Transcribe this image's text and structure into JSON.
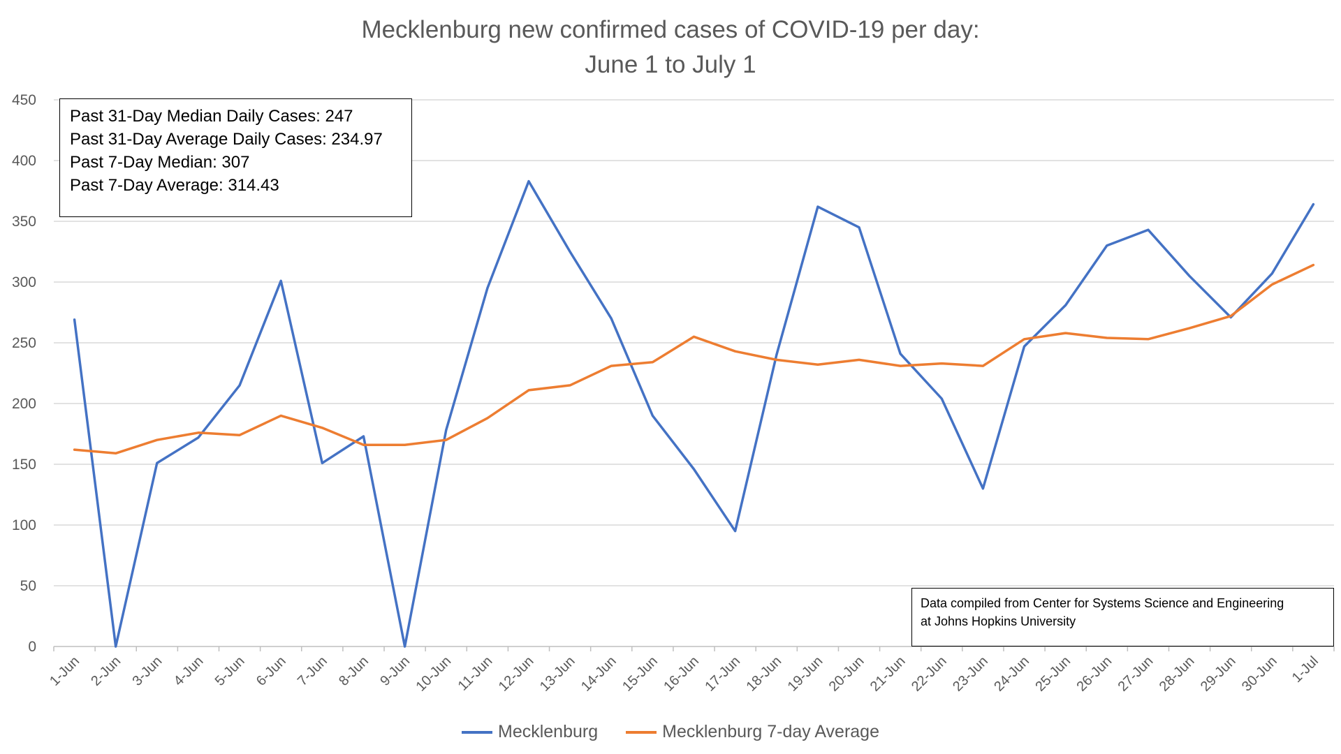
{
  "chart_data": {
    "type": "line",
    "title": "Mecklenburg new confirmed cases of COVID-19 per day:",
    "subtitle": "June 1 to July 1",
    "xlabel": "",
    "ylabel": "",
    "ylim": [
      0,
      450
    ],
    "yticks": [
      0,
      50,
      100,
      150,
      200,
      250,
      300,
      350,
      400,
      450
    ],
    "grid": true,
    "legend_position": "bottom",
    "categories": [
      "1-Jun",
      "2-Jun",
      "3-Jun",
      "4-Jun",
      "5-Jun",
      "6-Jun",
      "7-Jun",
      "8-Jun",
      "9-Jun",
      "10-Jun",
      "11-Jun",
      "12-Jun",
      "13-Jun",
      "14-Jun",
      "15-Jun",
      "16-Jun",
      "17-Jun",
      "18-Jun",
      "19-Jun",
      "20-Jun",
      "21-Jun",
      "22-Jun",
      "23-Jun",
      "24-Jun",
      "25-Jun",
      "26-Jun",
      "27-Jun",
      "28-Jun",
      "29-Jun",
      "30-Jun",
      "1-Jul"
    ],
    "series": [
      {
        "name": "Mecklenburg",
        "color": "#4472C4",
        "values": [
          269,
          0,
          151,
          172,
          215,
          301,
          151,
          173,
          0,
          178,
          295,
          383,
          325,
          270,
          190,
          146,
          95,
          240,
          362,
          345,
          241,
          204,
          130,
          247,
          281,
          330,
          343,
          305,
          271,
          307,
          364
        ]
      },
      {
        "name": "Mecklenburg 7-day Average",
        "color": "#ED7D31",
        "values": [
          162,
          159,
          170,
          176,
          174,
          190,
          180,
          166,
          166,
          170,
          188,
          211,
          215,
          231,
          234,
          255,
          243,
          236,
          232,
          236,
          231,
          233,
          231,
          253,
          258,
          254,
          253,
          262,
          272,
          298,
          314
        ]
      }
    ],
    "annotations": {
      "stats": [
        "Past 31-Day Median Daily Cases: 247",
        "Past 31-Day Average Daily Cases: 234.97",
        "Past 7-Day Median: 307",
        "Past 7-Day Average: 314.43"
      ],
      "source_line1": "Data compiled from Center for Systems Science and Engineering",
      "source_line2": "at Johns Hopkins University"
    }
  }
}
